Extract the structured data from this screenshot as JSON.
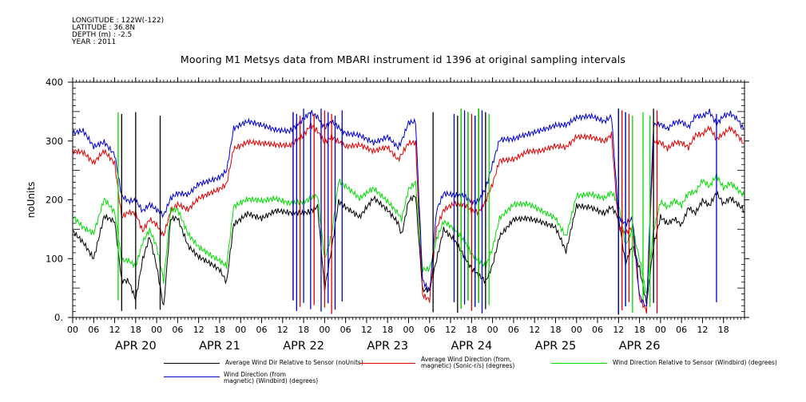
{
  "header": {
    "longitude": "LONGITUDE : 122W(-122)",
    "latitude": "LATITUDE : 36.8N",
    "depth": "DEPTH (m) : -2.5",
    "year": "YEAR : 2011"
  },
  "chart_data": {
    "type": "line",
    "title": "Mooring M1 Metsys data from MBARI instrument id 1396 at original sampling intervals",
    "ylabel": "noUnits",
    "xlabel": "",
    "ylim": [
      0,
      400
    ],
    "yticks": [
      "0.",
      "100",
      "200",
      "300",
      "400"
    ],
    "xlim_hours": [
      -6,
      186
    ],
    "xtick_labels": [
      "00",
      "06",
      "12",
      "18",
      "00",
      "06",
      "12",
      "18",
      "00",
      "06",
      "12",
      "18",
      "00",
      "06",
      "12",
      "18",
      "00",
      "06",
      "12",
      "18",
      "00",
      "06",
      "12",
      "18",
      "00",
      "06",
      "12",
      "18",
      "00",
      "06",
      "12",
      "18"
    ],
    "xtick_start_hour": -6,
    "day_labels": [
      "APR 20",
      "APR 21",
      "APR 22",
      "APR 23",
      "APR 24",
      "APR 25",
      "APR 26"
    ],
    "colors": {
      "black": "#000000",
      "red": "#e00000",
      "green": "#00dd00",
      "blue": "#0000cc"
    },
    "series": [
      {
        "name": "Average Wind Dir Relative to Sensor (noUnits)",
        "color": "#000000",
        "x": [
          -6,
          -3,
          0,
          3,
          6,
          8,
          10,
          12,
          14,
          16,
          18,
          20,
          22,
          24,
          27,
          30,
          33,
          36,
          38,
          40,
          44,
          48,
          52,
          56,
          60,
          62,
          64,
          66,
          68,
          70,
          72,
          76,
          80,
          84,
          87,
          88,
          90,
          92,
          94,
          96,
          98,
          100,
          103,
          106,
          108,
          110,
          112,
          114,
          116,
          120,
          124,
          128,
          132,
          135,
          138,
          142,
          146,
          148,
          150,
          152,
          154,
          156,
          158,
          160,
          162,
          164,
          166,
          168,
          170,
          172,
          174,
          176,
          178,
          180,
          182,
          184,
          186
        ],
        "y": [
          150,
          130,
          100,
          170,
          160,
          60,
          60,
          30,
          100,
          140,
          90,
          20,
          170,
          170,
          120,
          100,
          90,
          80,
          60,
          160,
          180,
          170,
          180,
          175,
          175,
          180,
          190,
          50,
          120,
          200,
          190,
          170,
          200,
          180,
          160,
          140,
          200,
          210,
          50,
          50,
          100,
          150,
          130,
          100,
          80,
          70,
          60,
          90,
          140,
          170,
          170,
          160,
          150,
          110,
          190,
          190,
          180,
          190,
          170,
          90,
          120,
          80,
          20,
          120,
          170,
          160,
          170,
          160,
          190,
          180,
          200,
          190,
          210,
          190,
          200,
          190,
          180
        ]
      },
      {
        "name": "Average Wind Direction (from, magnetic) (Sonic-r/s) (degrees)",
        "color": "#e00000",
        "x": [
          -6,
          -3,
          0,
          3,
          6,
          8,
          10,
          12,
          14,
          16,
          18,
          20,
          22,
          24,
          27,
          30,
          33,
          36,
          38,
          40,
          44,
          48,
          52,
          56,
          60,
          62,
          64,
          66,
          68,
          70,
          72,
          76,
          80,
          84,
          87,
          88,
          90,
          92,
          94,
          96,
          98,
          100,
          103,
          106,
          108,
          110,
          112,
          114,
          116,
          120,
          124,
          128,
          132,
          135,
          138,
          142,
          146,
          148,
          150,
          152,
          154,
          156,
          158,
          160,
          162,
          164,
          166,
          168,
          170,
          172,
          174,
          176,
          178,
          180,
          182,
          184,
          186
        ],
        "y": [
          285,
          280,
          260,
          280,
          260,
          170,
          180,
          180,
          150,
          170,
          160,
          140,
          180,
          190,
          180,
          200,
          210,
          220,
          230,
          290,
          300,
          295,
          290,
          290,
          310,
          330,
          320,
          300,
          310,
          300,
          290,
          290,
          280,
          290,
          270,
          280,
          300,
          300,
          40,
          30,
          150,
          180,
          190,
          190,
          180,
          180,
          200,
          230,
          270,
          270,
          280,
          280,
          290,
          290,
          310,
          310,
          300,
          310,
          150,
          140,
          150,
          30,
          10,
          300,
          300,
          290,
          300,
          300,
          290,
          310,
          310,
          320,
          300,
          310,
          320,
          310,
          295
        ]
      },
      {
        "name": "Wind Direction Relative to Sensor (Windbird) (degrees)",
        "color": "#00dd00",
        "x": [
          -6,
          -3,
          0,
          3,
          6,
          8,
          10,
          12,
          14,
          16,
          18,
          20,
          22,
          24,
          27,
          30,
          33,
          36,
          38,
          40,
          44,
          48,
          52,
          56,
          60,
          62,
          64,
          66,
          68,
          70,
          72,
          76,
          80,
          84,
          87,
          88,
          90,
          92,
          94,
          96,
          98,
          100,
          103,
          106,
          108,
          110,
          112,
          114,
          116,
          120,
          124,
          128,
          132,
          135,
          138,
          142,
          146,
          148,
          150,
          152,
          154,
          156,
          158,
          160,
          162,
          164,
          166,
          168,
          170,
          172,
          174,
          176,
          178,
          180,
          182,
          184,
          186
        ],
        "y": [
          170,
          150,
          140,
          200,
          180,
          100,
          100,
          90,
          130,
          150,
          120,
          60,
          180,
          180,
          140,
          120,
          110,
          100,
          90,
          190,
          200,
          195,
          200,
          195,
          200,
          205,
          210,
          100,
          140,
          230,
          220,
          200,
          220,
          200,
          180,
          170,
          220,
          230,
          80,
          80,
          130,
          160,
          150,
          130,
          110,
          100,
          90,
          120,
          170,
          190,
          190,
          180,
          170,
          140,
          210,
          210,
          200,
          210,
          190,
          120,
          150,
          100,
          40,
          150,
          200,
          190,
          200,
          190,
          210,
          210,
          230,
          220,
          240,
          220,
          230,
          220,
          210
        ]
      },
      {
        "name": "Wind Direction (from, magnetic) (Windbird) (degrees)",
        "color": "#0000cc",
        "x": [
          -6,
          -3,
          0,
          3,
          6,
          8,
          10,
          12,
          14,
          16,
          18,
          20,
          22,
          24,
          27,
          30,
          33,
          36,
          38,
          40,
          44,
          48,
          52,
          56,
          60,
          62,
          64,
          66,
          68,
          70,
          72,
          76,
          80,
          84,
          87,
          88,
          90,
          92,
          94,
          96,
          98,
          100,
          103,
          106,
          108,
          110,
          112,
          114,
          116,
          120,
          124,
          128,
          132,
          135,
          138,
          142,
          146,
          148,
          150,
          152,
          154,
          156,
          158,
          160,
          162,
          164,
          166,
          168,
          170,
          172,
          174,
          176,
          178,
          180,
          182,
          184,
          186
        ],
        "y": [
          310,
          315,
          290,
          300,
          280,
          210,
          200,
          200,
          180,
          190,
          180,
          170,
          200,
          210,
          210,
          230,
          235,
          240,
          250,
          320,
          330,
          325,
          320,
          320,
          340,
          350,
          340,
          320,
          330,
          320,
          310,
          310,
          300,
          310,
          290,
          300,
          330,
          330,
          60,
          40,
          180,
          210,
          210,
          210,
          200,
          200,
          220,
          260,
          300,
          300,
          310,
          320,
          330,
          330,
          340,
          340,
          330,
          340,
          170,
          160,
          170,
          40,
          20,
          330,
          330,
          320,
          330,
          330,
          320,
          340,
          340,
          350,
          330,
          345,
          350,
          340,
          320
        ]
      }
    ],
    "spikes": [
      {
        "color": "#000000",
        "x": [
          8,
          12,
          19,
          97,
          104,
          107,
          110,
          112,
          150,
          160
        ]
      },
      {
        "color": "#e00000",
        "x": [
          57,
          59,
          63,
          66,
          68,
          105,
          108,
          110,
          151,
          153,
          161
        ]
      },
      {
        "color": "#00dd00",
        "x": [
          7,
          105,
          107,
          109,
          110,
          113,
          152,
          154,
          157,
          159
        ]
      },
      {
        "color": "#0000cc",
        "x": [
          57,
          58,
          60,
          62,
          65,
          67,
          69,
          71,
          103,
          106,
          109,
          111,
          150,
          152,
          178
        ]
      }
    ],
    "legend": [
      {
        "label": "Average Wind Dir Relative to Sensor (noUnits)",
        "color": "#000000"
      },
      {
        "label": "Average Wind Direction (from,\nmagnetic) (Sonic-r/s) (degrees)",
        "color": "#e00000"
      },
      {
        "label": "Wind Direction Relative to Sensor (Windbird) (degrees)",
        "color": "#00dd00"
      },
      {
        "label": "Wind Direction (from\nmagnetic) (Windbird) (degrees)",
        "color": "#0000cc"
      }
    ],
    "grid": false,
    "legend_placement": "bottom"
  }
}
